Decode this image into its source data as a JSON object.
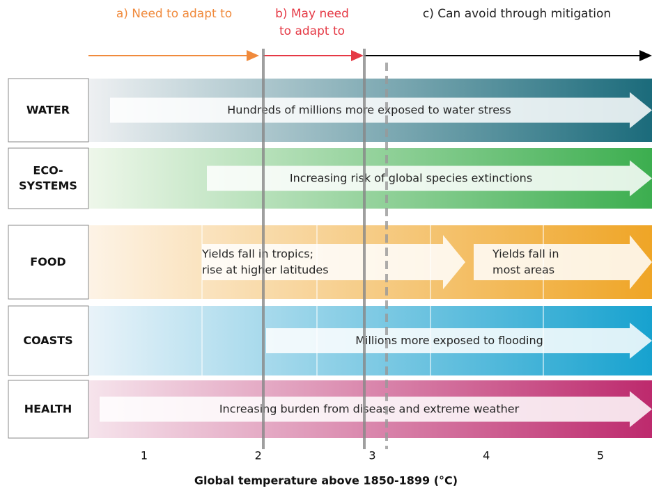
{
  "header": {
    "a": "a) Need to adapt to",
    "b": [
      "b) May need",
      "to adapt to"
    ],
    "c": "c) Can avoid through mitigation"
  },
  "rows": [
    {
      "label": [
        "WATER"
      ],
      "impacts": [
        [
          "Hundreds of millions more exposed to water stress"
        ]
      ]
    },
    {
      "label": [
        "ECO-",
        "SYSTEMS"
      ],
      "impacts": [
        [
          "Increasing risk of global species extinctions"
        ]
      ]
    },
    {
      "label": [
        "FOOD"
      ],
      "impacts": [
        [
          "Yields fall in tropics;",
          "rise at higher latitudes"
        ],
        [
          "Yields fall in",
          "most areas"
        ]
      ]
    },
    {
      "label": [
        "COASTS"
      ],
      "impacts": [
        [
          "Millions more exposed to flooding"
        ]
      ]
    },
    {
      "label": [
        "HEALTH"
      ],
      "impacts": [
        [
          "Increasing burden from disease and extreme weather"
        ]
      ]
    }
  ],
  "axis": {
    "ticks": [
      1,
      2,
      3,
      4,
      5
    ],
    "label": "Global temperature above 1850-1899 (°C)"
  }
}
